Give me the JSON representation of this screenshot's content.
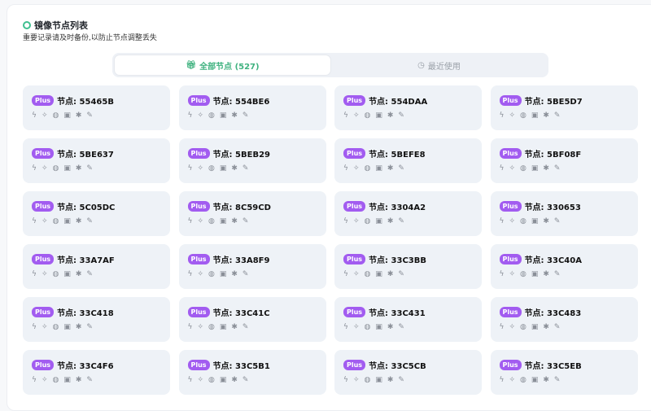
{
  "header": {
    "title": "镜像节点列表",
    "subtitle": "重要记录请及时备份,以防止节点调整丢失"
  },
  "tabs": [
    {
      "label": "全部节点 (527)",
      "icon": "gift-icon",
      "active": true
    },
    {
      "label": "最近使用",
      "icon": "clock-icon",
      "active": false
    }
  ],
  "colors": {
    "accent": "#3fb27f",
    "badge": "#a25cf0",
    "card": "#eef2f7"
  },
  "badge_label": "Plus",
  "node_prefix": "节点: ",
  "feature_icons": [
    "bolt-icon",
    "sparkles-icon",
    "globe-icon",
    "image-icon",
    "puzzle-icon",
    "edit-icon"
  ],
  "nodes": [
    "55465B",
    "554BE6",
    "554DAA",
    "5BE5D7",
    "5BE637",
    "5BEB29",
    "5BEFE8",
    "5BF08F",
    "5C05DC",
    "8C59CD",
    "3304A2",
    "330653",
    "33A7AF",
    "33A8F9",
    "33C3BB",
    "33C40A",
    "33C418",
    "33C41C",
    "33C431",
    "33C483",
    "33C4F6",
    "33C5B1",
    "33C5CB",
    "33C5EB"
  ]
}
